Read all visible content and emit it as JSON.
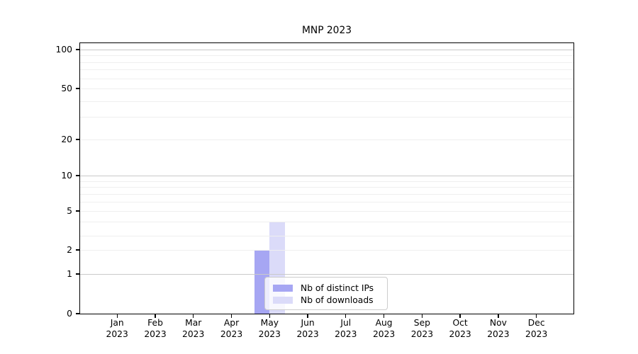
{
  "chart_data": {
    "type": "bar",
    "title": "MNP 2023",
    "categories": [
      "Jan",
      "Feb",
      "Mar",
      "Apr",
      "May",
      "Jun",
      "Jul",
      "Aug",
      "Sep",
      "Oct",
      "Nov",
      "Dec"
    ],
    "x_tick_year": "2023",
    "series": [
      {
        "name": "Nb of distinct IPs",
        "color": "#a6a6f3",
        "values": [
          0,
          0,
          0,
          0,
          2,
          0,
          0,
          0,
          0,
          0,
          0,
          0
        ]
      },
      {
        "name": "Nb of downloads",
        "color": "#dbdbf9",
        "values": [
          0,
          0,
          0,
          0,
          4,
          0,
          0,
          0,
          0,
          0,
          0,
          0
        ]
      }
    ],
    "yaxis": {
      "scale": "log-like (linear segment below 1)",
      "tick_labels": [
        0,
        1,
        2,
        5,
        10,
        20,
        50,
        100
      ],
      "range": [
        0,
        120
      ]
    },
    "xaxis": {
      "tick_count": 12
    },
    "grid": {
      "horizontal_major_at": [
        1,
        10,
        100
      ],
      "horizontal_minor_at": [
        2,
        3,
        4,
        5,
        6,
        7,
        8,
        9,
        20,
        30,
        40,
        50,
        60,
        70,
        80,
        90
      ]
    },
    "legend": {
      "position": "lower center inside plot"
    },
    "colors": {
      "major_grid": "#c9c9c9",
      "minor_grid": "#efefef",
      "spine": "#000000"
    }
  }
}
